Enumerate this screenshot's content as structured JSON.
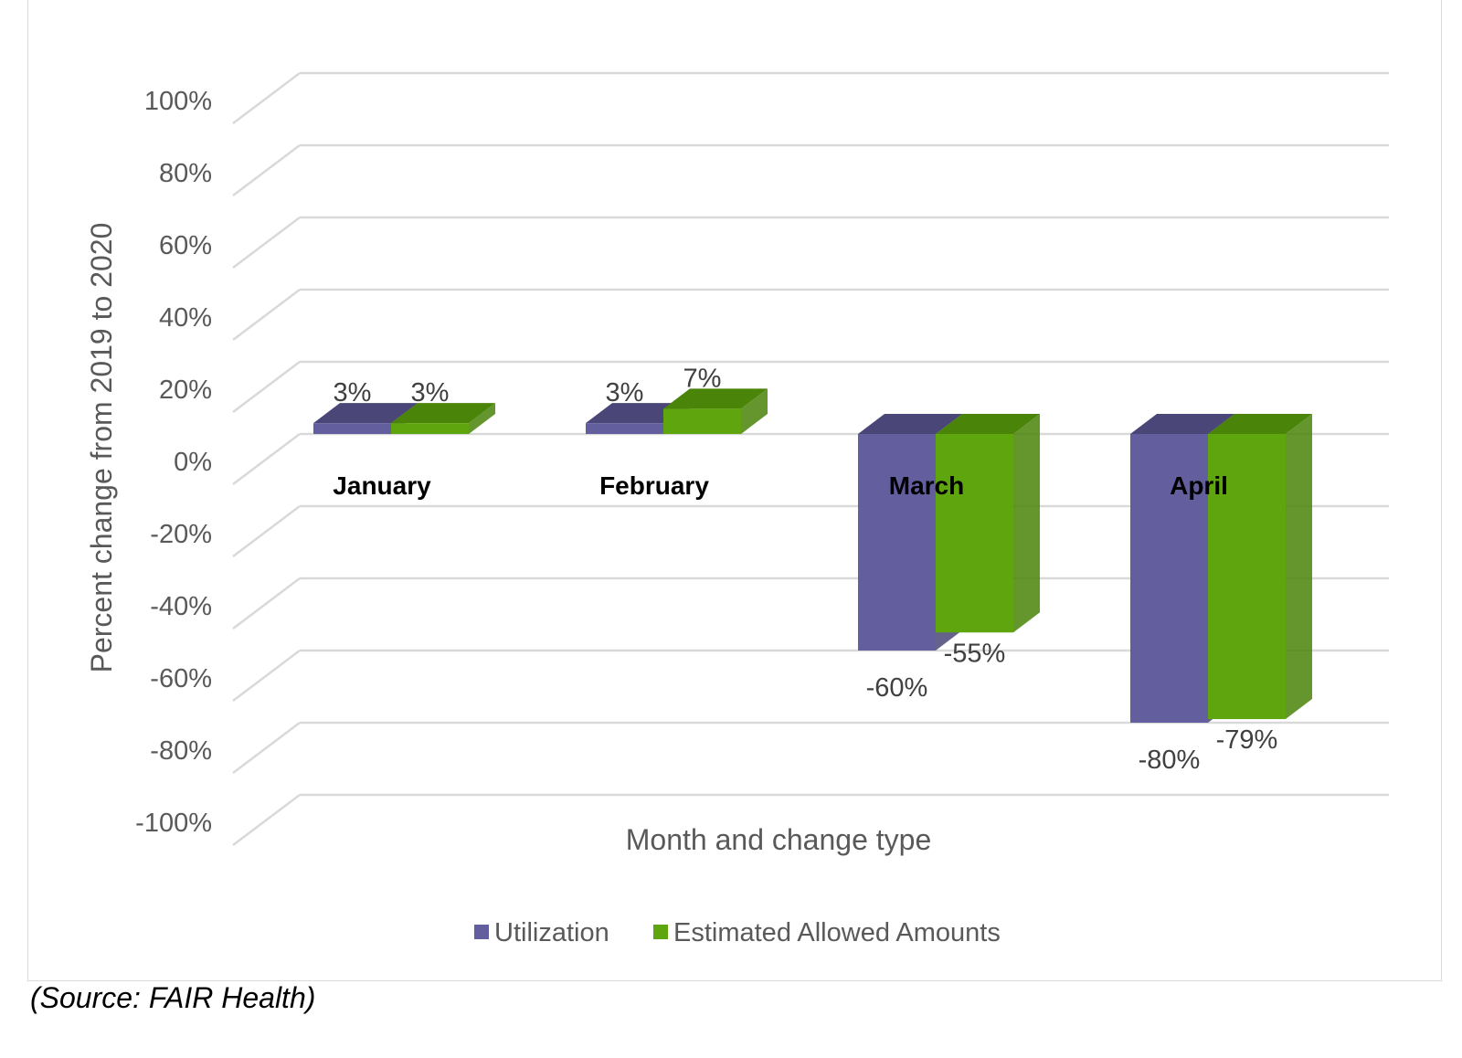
{
  "source_note": "(Source: FAIR Health)",
  "chart_data": {
    "type": "bar",
    "style": "3d-clustered-column",
    "categories": [
      "January",
      "February",
      "March",
      "April"
    ],
    "series": [
      {
        "name": "Utilization",
        "color": "#635f9f",
        "top_color": "#4a4678",
        "values": [
          3,
          3,
          -60,
          -80
        ],
        "labels": [
          "3%",
          "3%",
          "-60%",
          "-80%"
        ]
      },
      {
        "name": "Estimated Allowed Amounts",
        "color": "#5fa50d",
        "top_color": "#4a8409",
        "values": [
          3,
          7,
          -55,
          -79
        ],
        "labels": [
          "3%",
          "7%",
          "-55%",
          "-79%"
        ]
      }
    ],
    "xlabel": "Month and change type",
    "ylabel": "Percent change from 2019 to 2020",
    "ylim": [
      -100,
      100
    ],
    "yticks": [
      100,
      80,
      60,
      40,
      20,
      0,
      -20,
      -40,
      -60,
      -80,
      -100
    ],
    "ytick_labels": [
      "100%",
      "80%",
      "60%",
      "40%",
      "20%",
      "0%",
      "-20%",
      "-40%",
      "-60%",
      "-80%",
      "-100%"
    ],
    "grid": true,
    "legend_position": "bottom"
  }
}
